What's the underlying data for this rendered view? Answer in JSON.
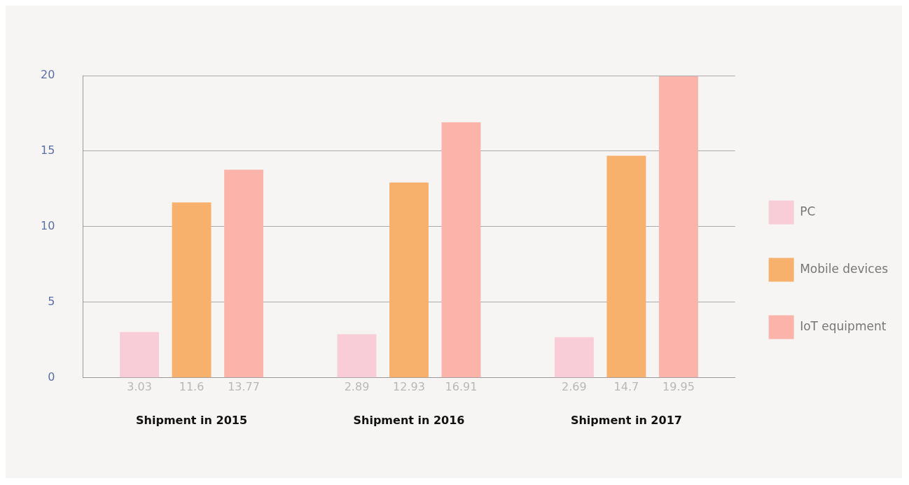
{
  "chart_data": {
    "type": "bar",
    "categories": [
      "Shipment in 2015",
      "Shipment in 2016",
      "Shipment in 2017"
    ],
    "series": [
      {
        "name": "PC",
        "color": "#f9cdd8",
        "values": [
          3.03,
          2.89,
          2.69
        ]
      },
      {
        "name": "Mobile devices",
        "color": "#f8b16c",
        "values": [
          11.6,
          12.93,
          14.7
        ]
      },
      {
        "name": "IoT equipment",
        "color": "#fbb3aa",
        "values": [
          13.77,
          16.91,
          19.95
        ]
      }
    ],
    "ylim": [
      0,
      20
    ],
    "yticks": [
      0,
      5,
      10,
      15,
      20
    ],
    "grid": "y",
    "legend": "right",
    "data_labels": true
  }
}
